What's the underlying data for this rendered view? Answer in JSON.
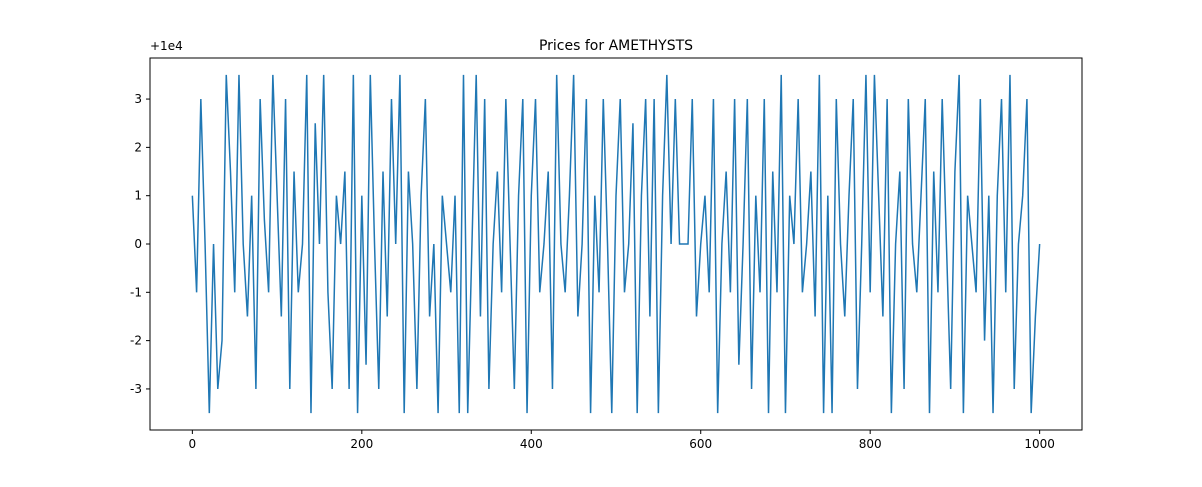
{
  "chart_data": {
    "type": "line",
    "title": "Prices for AMETHYSTS",
    "y_offset_label": "+1e4",
    "x": [
      0,
      5,
      10,
      15,
      20,
      25,
      30,
      35,
      40,
      45,
      50,
      55,
      60,
      65,
      70,
      75,
      80,
      85,
      90,
      95,
      100,
      105,
      110,
      115,
      120,
      125,
      130,
      135,
      140,
      145,
      150,
      155,
      160,
      165,
      170,
      175,
      180,
      185,
      190,
      195,
      200,
      205,
      210,
      215,
      220,
      225,
      230,
      235,
      240,
      245,
      250,
      255,
      260,
      265,
      270,
      275,
      280,
      285,
      290,
      295,
      300,
      305,
      310,
      315,
      320,
      325,
      330,
      335,
      340,
      345,
      350,
      355,
      360,
      365,
      370,
      375,
      380,
      385,
      390,
      395,
      400,
      405,
      410,
      415,
      420,
      425,
      430,
      435,
      440,
      445,
      450,
      455,
      460,
      465,
      470,
      475,
      480,
      485,
      490,
      495,
      500,
      505,
      510,
      515,
      520,
      525,
      530,
      535,
      540,
      545,
      550,
      555,
      560,
      565,
      570,
      575,
      580,
      585,
      590,
      595,
      600,
      605,
      610,
      615,
      620,
      625,
      630,
      635,
      640,
      645,
      650,
      655,
      660,
      665,
      670,
      675,
      680,
      685,
      690,
      695,
      700,
      705,
      710,
      715,
      720,
      725,
      730,
      735,
      740,
      745,
      750,
      755,
      760,
      765,
      770,
      775,
      780,
      785,
      790,
      795,
      800,
      805,
      810,
      815,
      820,
      825,
      830,
      835,
      840,
      845,
      850,
      855,
      860,
      865,
      870,
      875,
      880,
      885,
      890,
      895,
      900,
      905,
      910,
      915,
      920,
      925,
      930,
      935,
      940,
      945,
      950,
      955,
      960,
      965,
      970,
      975,
      980,
      985,
      990,
      995,
      1000
    ],
    "series": [
      {
        "color": "#1f77b4",
        "values": [
          1,
          -1,
          3,
          0,
          -3.5,
          0,
          -3,
          -2,
          3.5,
          1.5,
          -1,
          3.5,
          0,
          -1.5,
          1,
          -3,
          3,
          0.5,
          -1,
          3.5,
          1,
          -1.5,
          3,
          -3,
          1.5,
          -1,
          0,
          3.5,
          -3.5,
          2.5,
          0,
          3.5,
          -1,
          -3,
          1,
          0,
          1.5,
          -3,
          3.5,
          -3.5,
          1,
          -2.5,
          3.5,
          0,
          -3,
          1.5,
          -1.5,
          3,
          0,
          3.5,
          -3.5,
          1.5,
          0,
          -3,
          1,
          3,
          -1.5,
          0,
          -3.5,
          1,
          0,
          -1,
          1,
          -3.5,
          3.5,
          -3.5,
          0,
          3.5,
          -1.5,
          3,
          -3,
          0,
          1.5,
          -1,
          3,
          0,
          -3,
          1,
          3,
          -3.5,
          1,
          3,
          -1,
          0,
          1.5,
          -3,
          3.5,
          0,
          -1,
          1,
          3.5,
          -1.5,
          0,
          3,
          -3.5,
          1,
          -1,
          3,
          0,
          -3.5,
          1,
          3,
          -1,
          0,
          2.5,
          -3.5,
          1,
          3,
          -1.5,
          3,
          -3.5,
          1,
          3.5,
          0,
          3,
          0,
          0,
          0,
          3,
          -1.5,
          0,
          1,
          -1,
          3,
          -3.5,
          0,
          1.5,
          -1,
          3,
          -2.5,
          0,
          3,
          -3,
          1,
          -1,
          3,
          -3.5,
          1.5,
          -1,
          3.5,
          -3.5,
          1,
          0,
          3,
          -1,
          0,
          1.5,
          -1.5,
          3.5,
          -3.5,
          1,
          -3.5,
          3,
          0,
          -1.5,
          1,
          3,
          -3,
          0,
          3.5,
          -1,
          3.5,
          1,
          -1.5,
          3,
          -3.5,
          0,
          1.5,
          -3,
          3,
          0,
          -1,
          1,
          3,
          -3.5,
          1.5,
          -1,
          3,
          0,
          -3,
          1.5,
          3.5,
          -3.5,
          1,
          0,
          -1,
          3,
          -2,
          1,
          -3.5,
          1,
          3,
          -1,
          3.5,
          -3,
          0,
          1,
          3,
          -3.5,
          -1.5,
          0
        ]
      }
    ],
    "xlim": [
      -50,
      1050
    ],
    "ylim": [
      -3.85,
      3.85
    ],
    "xticks": [
      0,
      200,
      400,
      600,
      800,
      1000
    ],
    "yticks": [
      -3,
      -2,
      -1,
      0,
      1,
      2,
      3
    ]
  }
}
